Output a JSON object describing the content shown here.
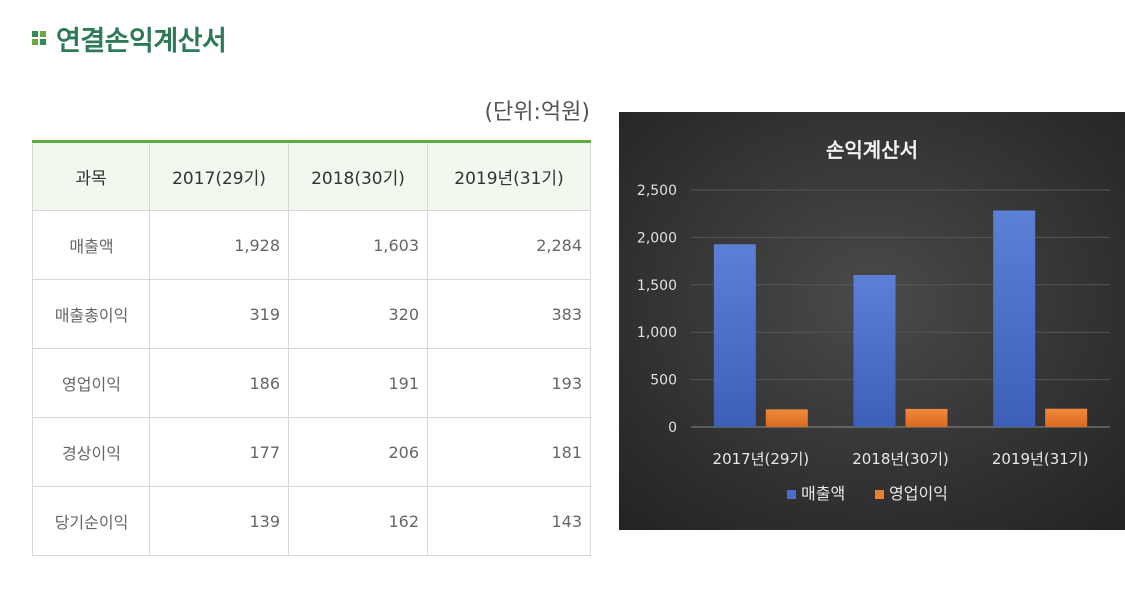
{
  "page_title": "연결손익계산서",
  "unit_label": "(단위:억원)",
  "table": {
    "headers": [
      "과목",
      "2017(29기)",
      "2018(30기)",
      "2019년(31기)"
    ],
    "rows": [
      {
        "label": "매출액",
        "values": [
          "1,928",
          "1,603",
          "2,284"
        ]
      },
      {
        "label": "매출총이익",
        "values": [
          "319",
          "320",
          "383"
        ]
      },
      {
        "label": "영업이익",
        "values": [
          "186",
          "191",
          "193"
        ]
      },
      {
        "label": "경상이익",
        "values": [
          "177",
          "206",
          "181"
        ]
      },
      {
        "label": "당기순이익",
        "values": [
          "139",
          "162",
          "143"
        ]
      }
    ]
  },
  "chart_data": {
    "type": "bar",
    "title": "손익계산서",
    "categories": [
      "2017년(29기)",
      "2018년(30기)",
      "2019년(31기)"
    ],
    "series": [
      {
        "name": "매출액",
        "values": [
          1928,
          1603,
          2284
        ],
        "color": "#4a6fc9"
      },
      {
        "name": "영업이익",
        "values": [
          186,
          191,
          193
        ],
        "color": "#ed7d31"
      }
    ],
    "ylim": [
      0,
      2500
    ],
    "yticks": [
      0,
      500,
      1000,
      1500,
      2000,
      2500
    ],
    "ytick_labels": [
      "0",
      "500",
      "1,000",
      "1,500",
      "2,000",
      "2,500"
    ],
    "grid": true,
    "legend": "bottom",
    "background": "#2f2f2f"
  }
}
